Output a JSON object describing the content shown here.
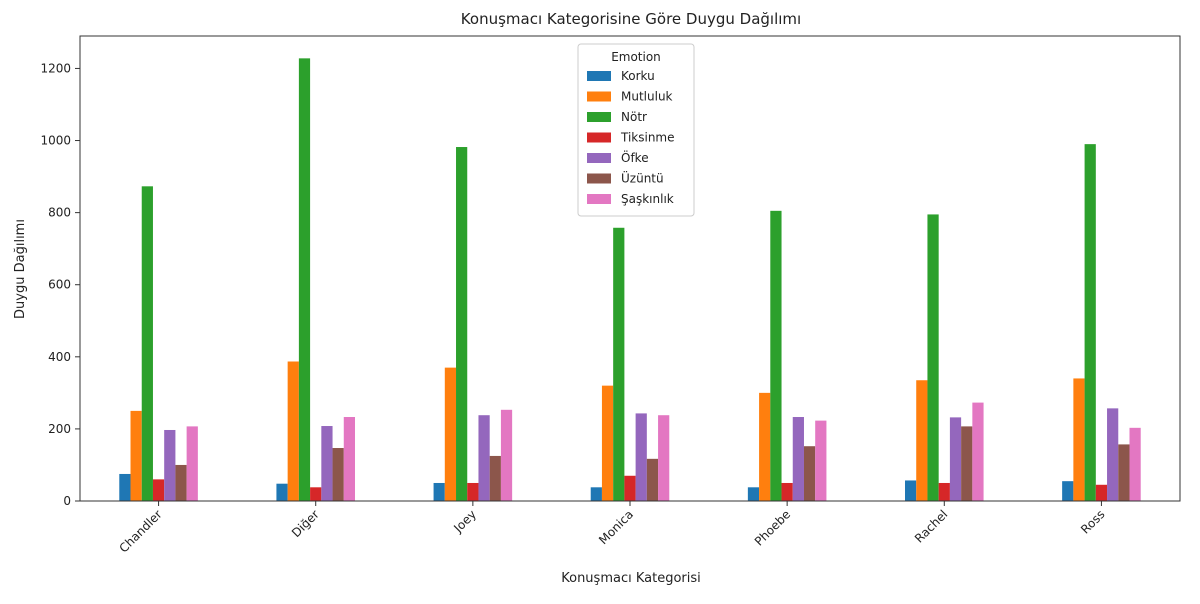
{
  "chart_data": {
    "type": "bar",
    "title": "Konuşmacı Kategorisine Göre Duygu Dağılımı",
    "xlabel": "Konuşmacı Kategorisi",
    "ylabel": "Duygu Dağılımı",
    "categories": [
      "Chandler",
      "Diğer",
      "Joey",
      "Monica",
      "Phoebe",
      "Rachel",
      "Ross"
    ],
    "ylim": [
      0,
      1290
    ],
    "yticks": [
      0,
      200,
      400,
      600,
      800,
      1000,
      1200
    ],
    "grid": false,
    "legend": {
      "title": "Emotion",
      "placement": "top-center"
    },
    "series": [
      {
        "name": "Korku",
        "color": "#1f77b4",
        "values": [
          75,
          48,
          50,
          38,
          38,
          57,
          55
        ]
      },
      {
        "name": "Mutluluk",
        "color": "#ff7f0e",
        "values": [
          250,
          387,
          370,
          320,
          300,
          335,
          340
        ]
      },
      {
        "name": "Nötr",
        "color": "#2ca02c",
        "values": [
          873,
          1228,
          982,
          758,
          805,
          795,
          990
        ]
      },
      {
        "name": "Tiksinme",
        "color": "#d62728",
        "values": [
          60,
          38,
          50,
          70,
          50,
          50,
          45
        ]
      },
      {
        "name": "Öfke",
        "color": "#9467bd",
        "values": [
          197,
          208,
          238,
          243,
          233,
          232,
          257
        ]
      },
      {
        "name": "Üzüntü",
        "color": "#8c564b",
        "values": [
          100,
          147,
          125,
          117,
          152,
          207,
          157
        ]
      },
      {
        "name": "Şaşkınlık",
        "color": "#e377c2",
        "values": [
          207,
          233,
          253,
          238,
          223,
          273,
          203
        ]
      }
    ]
  }
}
